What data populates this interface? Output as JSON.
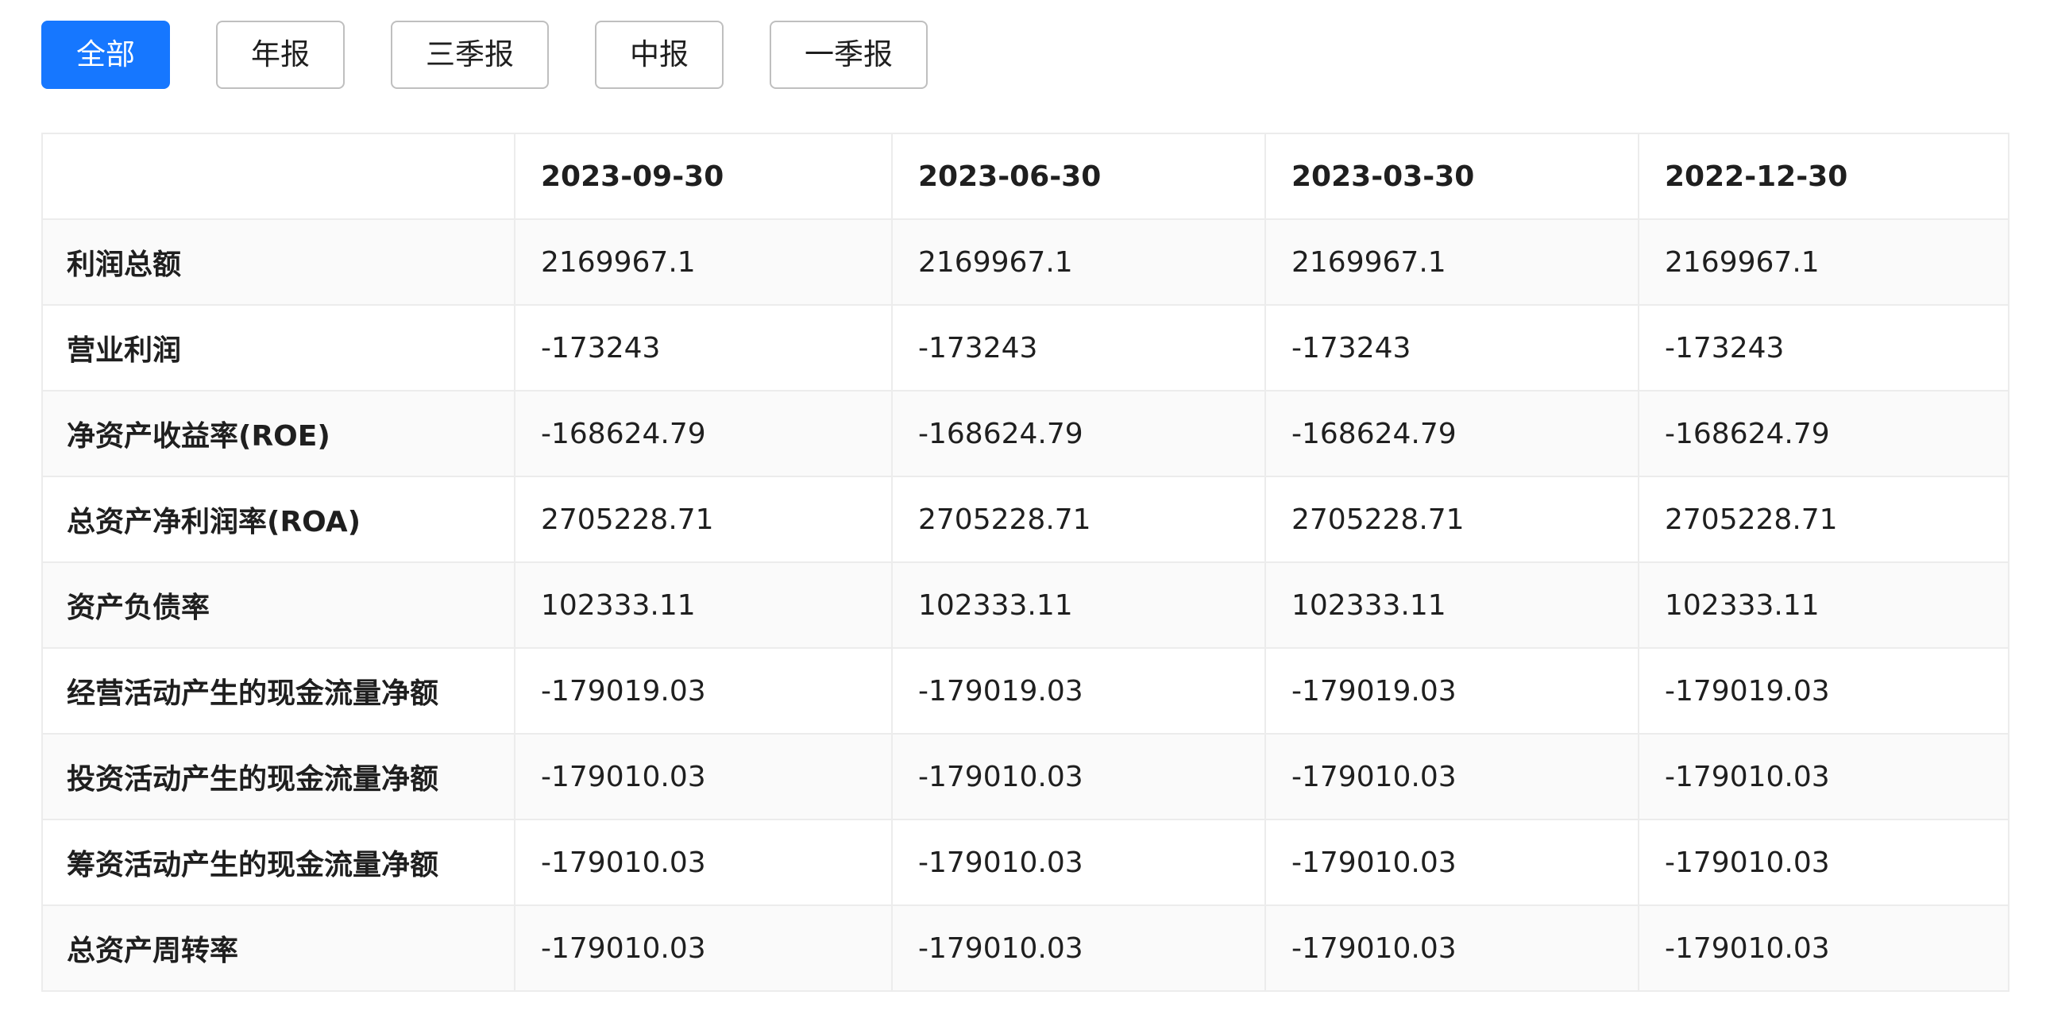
{
  "tabs": [
    {
      "label": "全部",
      "active": true
    },
    {
      "label": "年报",
      "active": false
    },
    {
      "label": "三季报",
      "active": false
    },
    {
      "label": "中报",
      "active": false
    },
    {
      "label": "一季报",
      "active": false
    }
  ],
  "colors": {
    "accent": "#1677ff",
    "border": "#ececec",
    "stripe": "#fafafa"
  },
  "table": {
    "corner": "",
    "columns": [
      "2023-09-30",
      "2023-06-30",
      "2023-03-30",
      "2022-12-30"
    ],
    "rows": [
      {
        "label": "利润总额",
        "values": [
          "2169967.1",
          "2169967.1",
          "2169967.1",
          "2169967.1"
        ]
      },
      {
        "label": "营业利润",
        "values": [
          "-173243",
          "-173243",
          "-173243",
          "-173243"
        ]
      },
      {
        "label": "净资产收益率(ROE)",
        "values": [
          "-168624.79",
          "-168624.79",
          "-168624.79",
          "-168624.79"
        ]
      },
      {
        "label": "总资产净利润率(ROA)",
        "values": [
          "2705228.71",
          "2705228.71",
          "2705228.71",
          "2705228.71"
        ]
      },
      {
        "label": "资产负债率",
        "values": [
          "102333.11",
          "102333.11",
          "102333.11",
          "102333.11"
        ]
      },
      {
        "label": "经营活动产生的现金流量净额",
        "values": [
          "-179019.03",
          "-179019.03",
          "-179019.03",
          "-179019.03"
        ]
      },
      {
        "label": "投资活动产生的现金流量净额",
        "values": [
          "-179010.03",
          "-179010.03",
          "-179010.03",
          "-179010.03"
        ]
      },
      {
        "label": "筹资活动产生的现金流量净额",
        "values": [
          "-179010.03",
          "-179010.03",
          "-179010.03",
          "-179010.03"
        ]
      },
      {
        "label": "总资产周转率",
        "values": [
          "-179010.03",
          "-179010.03",
          "-179010.03",
          "-179010.03"
        ]
      }
    ]
  }
}
